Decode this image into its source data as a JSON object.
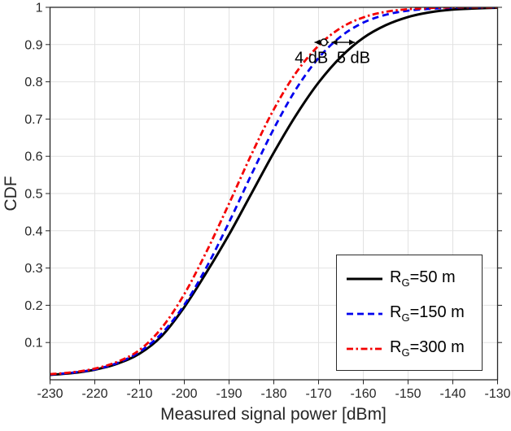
{
  "chart_data": {
    "type": "line",
    "title": "",
    "xlabel": "Measured signal power [dBm]",
    "ylabel": "CDF",
    "xlim": [
      -230,
      -130
    ],
    "ylim": [
      0,
      1
    ],
    "xticks": [
      -230,
      -220,
      -210,
      -200,
      -190,
      -180,
      -170,
      -160,
      -150,
      -140,
      -130
    ],
    "yticks": [
      0.1,
      0.2,
      0.3,
      0.4,
      0.5,
      0.6,
      0.7,
      0.8,
      0.9,
      1
    ],
    "grid": true,
    "legend_position": "lower right",
    "axis_color": "#262626",
    "grid_color": "#e2e2e2",
    "x": [
      -230,
      -225,
      -220,
      -215,
      -210,
      -205,
      -200,
      -195,
      -190,
      -185,
      -180,
      -175,
      -170,
      -165,
      -160,
      -155,
      -150,
      -145,
      -140,
      -135,
      -130
    ],
    "series": [
      {
        "name": "R_G=50 m",
        "label": {
          "pre": "R",
          "sub": "G",
          "post": "=50 m"
        },
        "color": "#000000",
        "style": "solid",
        "width": 3,
        "values": [
          0.013,
          0.018,
          0.027,
          0.043,
          0.07,
          0.118,
          0.195,
          0.289,
          0.39,
          0.5,
          0.61,
          0.711,
          0.798,
          0.867,
          0.918,
          0.952,
          0.974,
          0.987,
          0.994,
          0.997,
          0.999
        ]
      },
      {
        "name": "R_G=150 m",
        "label": {
          "pre": "R",
          "sub": "G",
          "post": "=150 m"
        },
        "color": "#0000ee",
        "style": "dashed",
        "width": 2.8,
        "values": [
          0.014,
          0.019,
          0.028,
          0.045,
          0.075,
          0.125,
          0.201,
          0.303,
          0.423,
          0.551,
          0.674,
          0.781,
          0.864,
          0.922,
          0.959,
          0.98,
          0.991,
          0.996,
          0.999,
          1.0,
          1.0
        ]
      },
      {
        "name": "R_G=300 m",
        "label": {
          "pre": "R",
          "sub": "G",
          "post": "=300 m"
        },
        "color": "#f40000",
        "style": "dashdot",
        "width": 2.8,
        "values": [
          0.015,
          0.02,
          0.03,
          0.048,
          0.08,
          0.14,
          0.23,
          0.345,
          0.473,
          0.605,
          0.726,
          0.825,
          0.897,
          0.945,
          0.973,
          0.988,
          0.995,
          0.998,
          1.0,
          1.0,
          1.0
        ]
      }
    ],
    "annotations": {
      "arrows": [
        {
          "x1": -170.9,
          "x2": -167.7,
          "cdf": 0.906
        },
        {
          "x1": -167.1,
          "x2": -161.9,
          "cdf": 0.906
        }
      ],
      "marker_circle": {
        "x": -168.8,
        "cdf": 0.906,
        "r": 4
      },
      "labels": [
        {
          "text": "4 dB",
          "x": -171.6,
          "cdf": 0.862
        },
        {
          "text": "5 dB",
          "x": -162.2,
          "cdf": 0.862
        }
      ]
    }
  }
}
